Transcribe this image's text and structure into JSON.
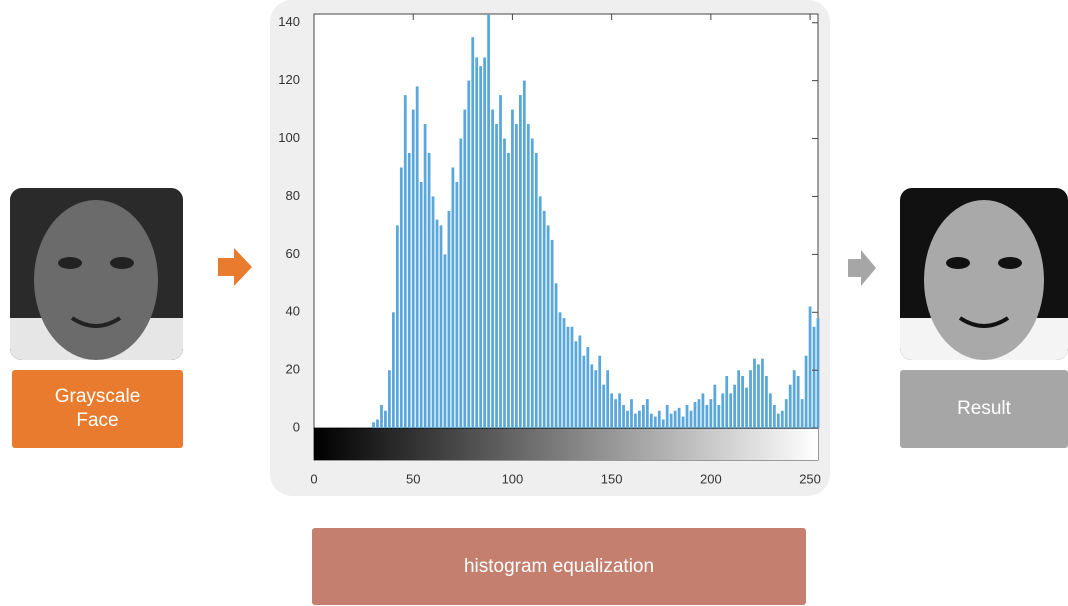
{
  "nodes": {
    "input": {
      "label": "Grayscale Face"
    },
    "output": {
      "label": "Result"
    },
    "process": {
      "label": "histogram equalization"
    }
  },
  "chart_data": {
    "type": "bar",
    "color": "#5aa7dc",
    "x": [
      30,
      32,
      34,
      36,
      38,
      40,
      42,
      44,
      46,
      48,
      50,
      52,
      54,
      56,
      58,
      60,
      62,
      64,
      66,
      68,
      70,
      72,
      74,
      76,
      78,
      80,
      82,
      84,
      86,
      88,
      90,
      92,
      94,
      96,
      98,
      100,
      102,
      104,
      106,
      108,
      110,
      112,
      114,
      116,
      118,
      120,
      122,
      124,
      126,
      128,
      130,
      132,
      134,
      136,
      138,
      140,
      142,
      144,
      146,
      148,
      150,
      152,
      154,
      156,
      158,
      160,
      162,
      164,
      166,
      168,
      170,
      172,
      174,
      176,
      178,
      180,
      182,
      184,
      186,
      188,
      190,
      192,
      194,
      196,
      198,
      200,
      202,
      204,
      206,
      208,
      210,
      212,
      214,
      216,
      218,
      220,
      222,
      224,
      226,
      228,
      230,
      232,
      234,
      236,
      238,
      240,
      242,
      244,
      246,
      248,
      250,
      252,
      254
    ],
    "values": [
      2,
      3,
      8,
      6,
      20,
      40,
      70,
      90,
      115,
      95,
      110,
      118,
      85,
      105,
      95,
      80,
      72,
      70,
      60,
      75,
      90,
      85,
      100,
      110,
      120,
      135,
      128,
      125,
      128,
      143,
      110,
      105,
      115,
      100,
      95,
      110,
      105,
      115,
      120,
      105,
      100,
      95,
      80,
      75,
      70,
      65,
      50,
      40,
      38,
      35,
      35,
      30,
      32,
      25,
      28,
      22,
      20,
      25,
      15,
      20,
      12,
      10,
      12,
      8,
      6,
      10,
      5,
      6,
      8,
      10,
      5,
      4,
      6,
      3,
      8,
      5,
      6,
      7,
      4,
      8,
      6,
      9,
      10,
      12,
      8,
      10,
      15,
      8,
      12,
      18,
      12,
      15,
      20,
      18,
      14,
      20,
      24,
      22,
      24,
      18,
      12,
      8,
      5,
      6,
      10,
      15,
      20,
      18,
      10,
      25,
      42,
      35,
      38
    ],
    "xlim": [
      0,
      254
    ],
    "ylim": [
      -11,
      143
    ],
    "xticks": [
      0,
      50,
      100,
      150,
      200,
      250
    ],
    "yticks": [
      0,
      20,
      40,
      60,
      80,
      100,
      120,
      140
    ]
  }
}
